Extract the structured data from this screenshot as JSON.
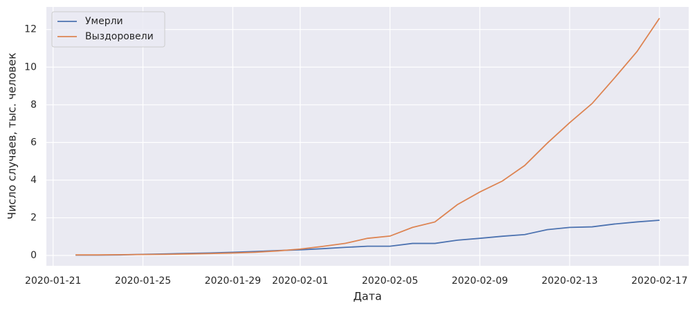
{
  "chart_data": {
    "type": "line",
    "xlabel": "Дата",
    "ylabel": "Число случаев, тыс. человек",
    "x": [
      "2020-01-22",
      "2020-01-23",
      "2020-01-24",
      "2020-01-25",
      "2020-01-26",
      "2020-01-27",
      "2020-01-28",
      "2020-01-29",
      "2020-01-30",
      "2020-01-31",
      "2020-02-01",
      "2020-02-02",
      "2020-02-03",
      "2020-02-04",
      "2020-02-05",
      "2020-02-06",
      "2020-02-07",
      "2020-02-08",
      "2020-02-09",
      "2020-02-10",
      "2020-02-11",
      "2020-02-12",
      "2020-02-13",
      "2020-02-14",
      "2020-02-15",
      "2020-02-16",
      "2020-02-17"
    ],
    "series": [
      {
        "name": "Умерли",
        "color": "#4c72b0",
        "values": [
          0.02,
          0.02,
          0.03,
          0.06,
          0.08,
          0.11,
          0.13,
          0.17,
          0.21,
          0.26,
          0.3,
          0.36,
          0.43,
          0.49,
          0.49,
          0.64,
          0.64,
          0.81,
          0.91,
          1.02,
          1.11,
          1.37,
          1.49,
          1.52,
          1.67,
          1.78,
          1.87
        ]
      },
      {
        "name": "Выздоровели",
        "color": "#dd8452",
        "values": [
          0.03,
          0.03,
          0.04,
          0.05,
          0.06,
          0.08,
          0.1,
          0.13,
          0.17,
          0.24,
          0.34,
          0.48,
          0.64,
          0.91,
          1.03,
          1.49,
          1.78,
          2.7,
          3.37,
          3.95,
          4.78,
          5.96,
          7.05,
          8.07,
          9.43,
          10.83,
          12.6
        ]
      }
    ],
    "xlim": [
      "2020-01-20T16:48",
      "2020-02-18T07:12"
    ],
    "xticks": [
      "2020-01-21",
      "2020-01-25",
      "2020-01-29",
      "2020-02-01",
      "2020-02-05",
      "2020-02-09",
      "2020-02-13",
      "2020-02-17"
    ],
    "ylim": [
      -0.55,
      13.2
    ],
    "yticks": [
      0,
      2,
      4,
      6,
      8,
      10,
      12
    ],
    "grid": true,
    "legend": "upper-left"
  }
}
